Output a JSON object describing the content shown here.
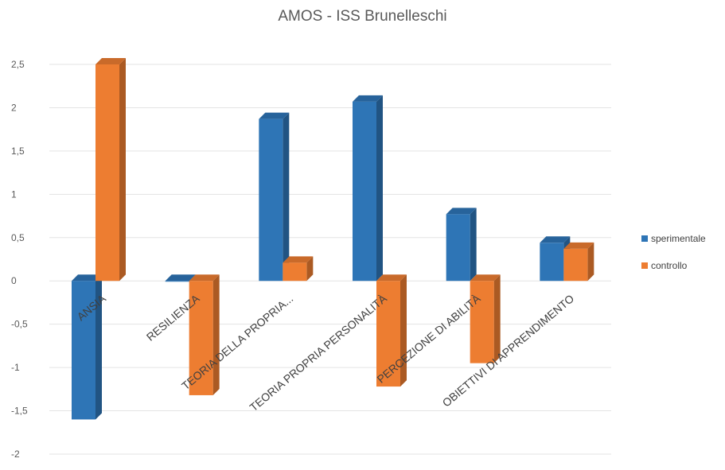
{
  "chart_data": {
    "type": "bar",
    "title": "AMOS - ISS Brunelleschi",
    "categories": [
      "ANSIA",
      "RESILIENZA",
      "TEORIA DELLA PROPRIA...",
      "TEORIA PROPRIA PERSONALITÀ",
      "PERCEZIONE DI ABILITÀ",
      "OBIETTIVI DI APPRENDIMENTO"
    ],
    "series": [
      {
        "name": "sperimentale",
        "color": "#2E75B6",
        "values": [
          -1.6,
          0.0,
          1.87,
          2.07,
          0.77,
          0.44
        ]
      },
      {
        "name": "controllo",
        "color": "#ED7D31",
        "values": [
          2.5,
          -1.32,
          0.21,
          -1.22,
          -0.95,
          0.37
        ]
      }
    ],
    "yticks": [
      "2,5",
      "2",
      "1,5",
      "1",
      "0,5",
      "0",
      "-0,5",
      "-1",
      "-1,5",
      "-2"
    ],
    "ylim": [
      -2,
      2.5
    ],
    "grid": true,
    "legend": "right",
    "style": "3d-column"
  }
}
